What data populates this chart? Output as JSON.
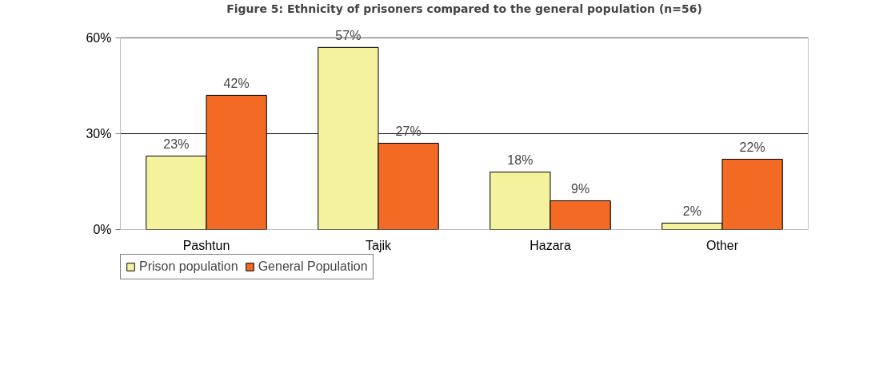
{
  "chart_data": {
    "type": "bar",
    "title": "Figure 5: Ethnicity of prisoners compared to the general population (n=56)",
    "categories": [
      "Pashtun",
      "Tajik",
      "Hazara",
      "Other"
    ],
    "series": [
      {
        "name": "Prison population",
        "color": "#f5f29e",
        "values": [
          23,
          57,
          18,
          2
        ],
        "value_labels": [
          "23%",
          "57%",
          "18%",
          "2%"
        ]
      },
      {
        "name": "General Population",
        "color": "#f26a23",
        "values": [
          42,
          27,
          9,
          22
        ],
        "value_labels": [
          "42%",
          "27%",
          "9%",
          "22%"
        ]
      }
    ],
    "ylim": [
      0,
      60
    ],
    "yticks": [
      {
        "value": 0,
        "label": "0%"
      },
      {
        "value": 30,
        "label": "30%"
      },
      {
        "value": 60,
        "label": "60%"
      }
    ],
    "grid": "y",
    "legend": "bottom left"
  }
}
